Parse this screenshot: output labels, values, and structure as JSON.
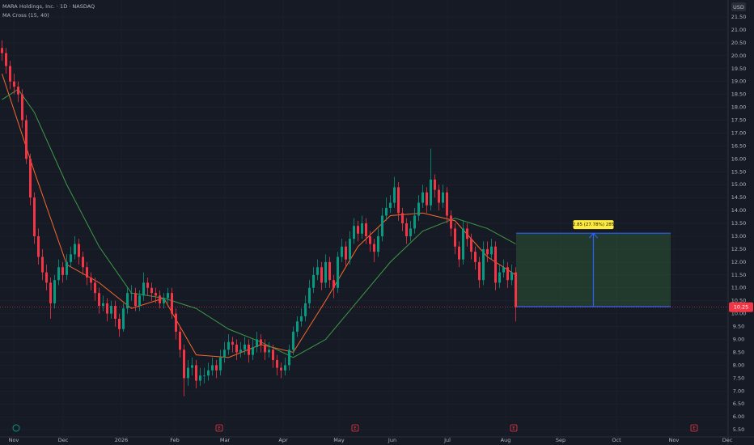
{
  "chart_data": {
    "type": "candlestick",
    "title": "MARA Holdings, Inc. · 1D · NASDAQ",
    "indicator": "MA Cross (15, 40)",
    "currency": "USD",
    "colors": {
      "up": "#089981",
      "down": "#f23645"
    },
    "grid": true,
    "xlim": [
      -0.5,
      179.5
    ],
    "ylim": [
      5.22,
      22.16
    ],
    "xticks": [
      {
        "value": 2.9,
        "label": "Nov"
      },
      {
        "value": 15.1,
        "label": "Dec"
      },
      {
        "value": 29.5,
        "label": "2026"
      },
      {
        "value": 42.7,
        "label": "Feb"
      },
      {
        "value": 55.1,
        "label": "Mar"
      },
      {
        "value": 69.5,
        "label": "Apr"
      },
      {
        "value": 83.3,
        "label": "May"
      },
      {
        "value": 96.5,
        "label": "Jun"
      },
      {
        "value": 110.1,
        "label": "Jul"
      },
      {
        "value": 124.5,
        "label": "Aug"
      },
      {
        "value": 138.1,
        "label": "Sep"
      },
      {
        "value": 151.9,
        "label": "Oct"
      },
      {
        "value": 166.1,
        "label": "Nov"
      },
      {
        "value": 179.3,
        "label": "Dec"
      }
    ],
    "yticks": [
      {
        "value": 5.5,
        "label": "5.50"
      },
      {
        "value": 6,
        "label": "6.00"
      },
      {
        "value": 6.5,
        "label": "6.50"
      },
      {
        "value": 7,
        "label": "7.00"
      },
      {
        "value": 7.5,
        "label": "7.50"
      },
      {
        "value": 8,
        "label": "8.00"
      },
      {
        "value": 8.5,
        "label": "8.50"
      },
      {
        "value": 9,
        "label": "9.00"
      },
      {
        "value": 9.5,
        "label": "9.50"
      },
      {
        "value": 10,
        "label": "10.00"
      },
      {
        "value": 10.5,
        "label": "10.50"
      },
      {
        "value": 11,
        "label": "11.00"
      },
      {
        "value": 11.5,
        "label": "11.50"
      },
      {
        "value": 12,
        "label": "12.00"
      },
      {
        "value": 12.5,
        "label": "12.50"
      },
      {
        "value": 13,
        "label": "13.00"
      },
      {
        "value": 13.5,
        "label": "13.50"
      },
      {
        "value": 14,
        "label": "14.00"
      },
      {
        "value": 14.5,
        "label": "14.50"
      },
      {
        "value": 15,
        "label": "15.00"
      },
      {
        "value": 15.5,
        "label": "15.50"
      },
      {
        "value": 16,
        "label": "16.00"
      },
      {
        "value": 16.5,
        "label": "16.50"
      },
      {
        "value": 17,
        "label": "17.00"
      },
      {
        "value": 17.5,
        "label": "17.50"
      },
      {
        "value": 18,
        "label": "18.00"
      },
      {
        "value": 18.5,
        "label": "18.50"
      },
      {
        "value": 19,
        "label": "19.00"
      },
      {
        "value": 19.5,
        "label": "19.50"
      },
      {
        "value": 20,
        "label": "20.00"
      },
      {
        "value": 20.5,
        "label": "20.50"
      },
      {
        "value": 21,
        "label": "21.00"
      },
      {
        "value": 21.5,
        "label": "21.50"
      }
    ],
    "open": [
      20.3,
      20.1,
      19.6,
      19.0,
      18.8,
      18.5,
      17.5,
      16.0,
      14.5,
      13.0,
      12.2,
      11.6,
      11.2,
      10.4,
      11.3,
      11.8,
      11.5,
      12.0,
      12.3,
      12.7,
      12.2,
      11.8,
      11.4,
      11.2,
      10.8,
      10.3,
      10.4,
      10.0,
      10.3,
      9.8,
      9.4,
      10.2,
      10.8,
      10.8,
      10.3,
      10.7,
      11.2,
      11.0,
      10.8,
      10.7,
      10.4,
      10.6,
      10.8,
      10.0,
      9.3,
      8.6,
      7.5,
      7.9,
      8.0,
      7.4,
      7.6,
      7.6,
      7.8,
      8.0,
      7.8,
      8.3,
      8.6,
      8.9,
      8.8,
      8.5,
      8.6,
      8.8,
      8.4,
      8.7,
      9.0,
      8.8,
      8.5,
      8.6,
      8.2,
      7.9,
      7.8,
      8.0,
      8.6,
      9.3,
      9.7,
      9.9,
      10.4,
      11.0,
      11.5,
      11.8,
      11.2,
      12.0,
      11.3,
      11.0,
      12.2,
      12.6,
      12.1,
      12.9,
      13.4,
      13.1,
      13.5,
      13.0,
      12.7,
      12.4,
      13.0,
      13.8,
      14.1,
      14.3,
      14.9,
      13.9,
      13.5,
      13.0,
      13.3,
      13.8,
      14.3,
      14.7,
      14.2,
      15.2,
      14.8,
      14.3,
      14.7,
      13.8,
      13.3,
      12.6,
      12.1,
      13.3,
      12.9,
      12.4,
      12.0,
      11.3,
      12.5,
      12.3,
      12.6,
      11.2,
      11.6,
      11.8,
      11.3,
      11.6
    ],
    "high": [
      20.6,
      20.3,
      19.8,
      19.3,
      19.0,
      18.7,
      17.7,
      16.2,
      14.7,
      13.3,
      12.5,
      11.9,
      11.4,
      11.5,
      12.1,
      12.0,
      12.3,
      12.6,
      13.0,
      12.9,
      12.4,
      12.0,
      11.6,
      11.4,
      11.0,
      10.7,
      10.6,
      10.5,
      10.5,
      10.0,
      10.4,
      11.0,
      11.1,
      11.0,
      10.9,
      11.6,
      11.4,
      11.2,
      11.0,
      10.9,
      10.8,
      11.0,
      11.0,
      10.2,
      9.5,
      8.8,
      8.2,
      8.3,
      8.2,
      7.9,
      7.9,
      8.1,
      8.3,
      8.2,
      8.6,
      8.9,
      9.2,
      9.1,
      9.0,
      8.9,
      9.1,
      9.0,
      9.0,
      9.3,
      9.2,
      9.0,
      8.9,
      8.8,
      8.4,
      8.1,
      8.3,
      8.8,
      9.5,
      9.9,
      10.2,
      10.7,
      11.3,
      11.8,
      12.1,
      12.0,
      12.3,
      12.2,
      11.5,
      12.4,
      12.9,
      12.8,
      13.2,
      13.7,
      13.6,
      13.8,
      13.7,
      13.2,
      12.9,
      13.3,
      14.1,
      14.5,
      14.6,
      15.3,
      15.1,
      14.1,
      13.7,
      13.6,
      14.1,
      14.6,
      15.0,
      14.9,
      16.4,
      15.4,
      15.0,
      15.0,
      14.9,
      14.0,
      13.5,
      12.8,
      13.6,
      13.5,
      13.1,
      12.6,
      12.2,
      12.8,
      12.8,
      12.9,
      12.8,
      11.9,
      12.1,
      12.0,
      11.9,
      11.8
    ],
    "low": [
      19.8,
      19.3,
      18.7,
      18.5,
      18.2,
      17.2,
      15.8,
      14.2,
      12.7,
      11.9,
      11.3,
      10.9,
      9.8,
      10.2,
      11.1,
      11.2,
      11.3,
      11.8,
      12.1,
      11.9,
      11.5,
      11.1,
      10.9,
      10.5,
      10.0,
      10.1,
      9.7,
      9.8,
      9.5,
      9.1,
      9.3,
      10.0,
      10.5,
      10.1,
      10.1,
      10.5,
      10.7,
      10.5,
      10.4,
      10.2,
      10.2,
      10.4,
      9.8,
      9.0,
      8.3,
      6.8,
      7.2,
      7.6,
      7.1,
      7.2,
      7.3,
      7.4,
      7.6,
      7.5,
      7.6,
      8.1,
      8.4,
      8.5,
      8.2,
      8.3,
      8.4,
      8.1,
      8.2,
      8.5,
      8.5,
      8.2,
      8.3,
      7.9,
      7.6,
      7.5,
      7.6,
      7.8,
      8.4,
      9.1,
      9.5,
      9.7,
      10.2,
      10.8,
      11.3,
      10.9,
      11.0,
      11.0,
      10.6,
      10.8,
      12.0,
      11.8,
      11.9,
      12.7,
      12.8,
      12.9,
      12.7,
      12.4,
      12.0,
      12.2,
      12.8,
      13.6,
      13.9,
      14.1,
      13.6,
      13.2,
      12.7,
      12.8,
      13.1,
      13.6,
      14.1,
      13.9,
      14.0,
      14.5,
      14.0,
      14.1,
      13.5,
      13.0,
      12.3,
      11.8,
      11.9,
      12.6,
      12.1,
      11.7,
      11.0,
      11.1,
      12.0,
      12.1,
      10.9,
      11.0,
      11.4,
      11.0,
      11.1,
      9.7
    ],
    "close": [
      20.1,
      19.6,
      19.0,
      18.8,
      18.5,
      17.5,
      16.0,
      14.5,
      13.0,
      12.2,
      11.6,
      11.2,
      10.4,
      11.3,
      11.8,
      11.5,
      12.0,
      12.3,
      12.7,
      12.2,
      11.8,
      11.4,
      11.2,
      10.8,
      10.3,
      10.4,
      10.0,
      10.3,
      9.8,
      9.4,
      10.2,
      10.8,
      10.8,
      10.3,
      10.7,
      11.2,
      11.0,
      10.8,
      10.7,
      10.4,
      10.6,
      10.8,
      10.0,
      9.3,
      8.6,
      7.5,
      7.9,
      8.0,
      7.4,
      7.6,
      7.6,
      7.8,
      8.0,
      7.8,
      8.3,
      8.6,
      8.9,
      8.8,
      8.5,
      8.6,
      8.8,
      8.4,
      8.7,
      9.0,
      8.8,
      8.5,
      8.6,
      8.2,
      7.9,
      7.8,
      8.0,
      8.6,
      9.3,
      9.7,
      9.9,
      10.4,
      11.0,
      11.5,
      11.8,
      11.2,
      12.0,
      11.3,
      11.0,
      12.2,
      12.6,
      12.1,
      12.9,
      13.4,
      13.1,
      13.5,
      13.0,
      12.7,
      12.4,
      13.0,
      13.8,
      14.1,
      14.3,
      14.9,
      13.9,
      13.5,
      13.0,
      13.3,
      13.8,
      14.3,
      14.7,
      14.2,
      15.2,
      14.8,
      14.3,
      14.7,
      13.8,
      13.3,
      12.6,
      12.1,
      13.3,
      12.9,
      12.4,
      12.0,
      11.3,
      12.5,
      12.3,
      12.6,
      11.2,
      11.6,
      11.8,
      11.3,
      11.6,
      10.25
    ],
    "ma_lines": [
      {
        "color": "#f7682c",
        "x": [
          0,
          8,
          16,
          24,
          32,
          40,
          48,
          56,
          64,
          72,
          80,
          88,
          96,
          104,
          112,
          120,
          127
        ],
        "values": [
          19.3,
          15.5,
          11.9,
          11.2,
          10.2,
          10.6,
          8.4,
          8.3,
          8.8,
          8.5,
          10.5,
          12.6,
          13.8,
          13.9,
          13.6,
          12.2,
          11.5
        ]
      },
      {
        "color": "#3d9a45",
        "x": [
          0,
          4,
          8,
          16,
          24,
          32,
          40,
          48,
          56,
          64,
          72,
          80,
          88,
          96,
          104,
          112,
          120,
          127
        ],
        "values": [
          18.3,
          18.7,
          17.8,
          15.0,
          12.6,
          10.8,
          10.6,
          10.2,
          9.4,
          8.9,
          8.3,
          9.0,
          10.5,
          12.0,
          13.2,
          13.7,
          13.3,
          12.7
        ]
      }
    ],
    "last_price": 10.25,
    "measure": {
      "label": "2.85 (27.78%) 285",
      "top": 13.12,
      "bottom": 10.27,
      "x": [
        127.1,
        165.3
      ]
    },
    "dividend_x": 3.5,
    "events": [
      {
        "x": 53.7,
        "label": "E"
      },
      {
        "x": 87.3,
        "label": "E"
      },
      {
        "x": 126.5,
        "label": "E"
      },
      {
        "x": 171.1,
        "label": "E"
      }
    ]
  }
}
